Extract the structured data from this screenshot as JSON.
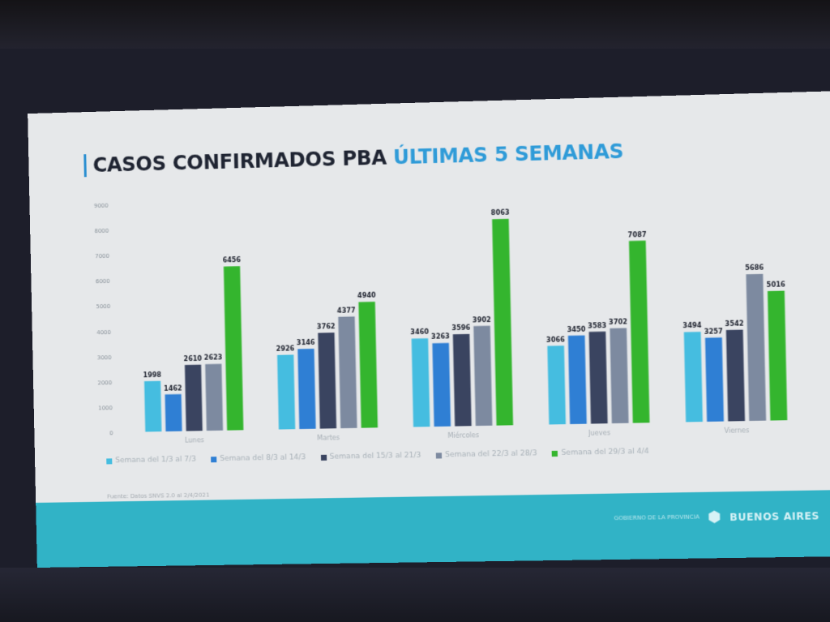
{
  "slide": {
    "title_main": "CASOS CONFIRMADOS PBA",
    "title_accent": "ÚLTIMAS 5 SEMANAS",
    "source": "Fuente: Datos SNVS 2.0 al 2/4/2021",
    "footer_small": "GOBIERNO DE LA PROVINCIA",
    "footer_brand": "BUENOS AIRES"
  },
  "colors": {
    "series": [
      "#45bde0",
      "#2f7fd4",
      "#3a4460",
      "#7d8aa0",
      "#34b52e"
    ]
  },
  "chart_data": {
    "type": "bar",
    "title": "CASOS CONFIRMADOS PBA ÚLTIMAS 5 SEMANAS",
    "categories": [
      "Lunes",
      "Martes",
      "Miércoles",
      "Jueves",
      "Viernes"
    ],
    "series": [
      {
        "name": "Semana del 1/3 al 7/3",
        "values": [
          1998,
          2926,
          3460,
          3066,
          3494
        ]
      },
      {
        "name": "Semana del 8/3 al 14/3",
        "values": [
          1462,
          3146,
          3263,
          3450,
          3257
        ]
      },
      {
        "name": "Semana del 15/3 al 21/3",
        "values": [
          2610,
          3762,
          3596,
          3583,
          3542
        ]
      },
      {
        "name": "Semana del 22/3 al 28/3",
        "values": [
          2623,
          4377,
          3902,
          3702,
          5686
        ]
      },
      {
        "name": "Semana del 29/3 al 4/4",
        "values": [
          6456,
          4940,
          8063,
          7087,
          5016
        ]
      }
    ],
    "yticks": [
      0,
      1000,
      2000,
      3000,
      4000,
      5000,
      6000,
      7000,
      8000,
      9000
    ],
    "ylim": [
      0,
      9000
    ],
    "grid": false,
    "legend": "bottom"
  }
}
